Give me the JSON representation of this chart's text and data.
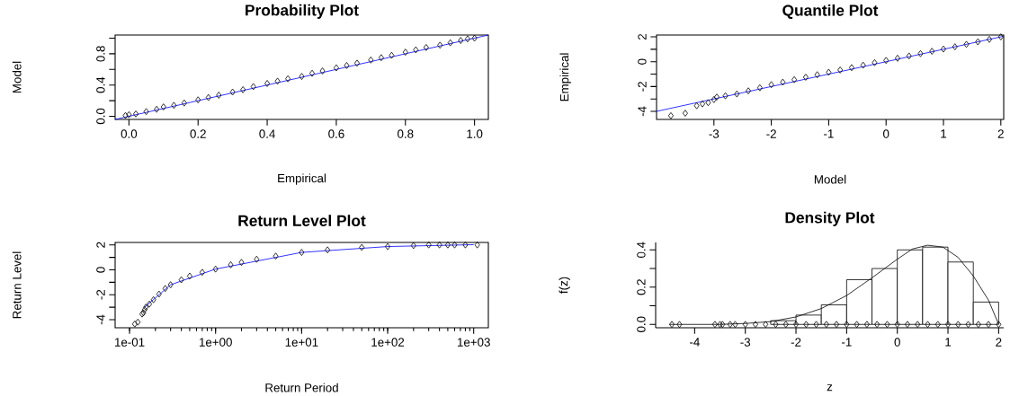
{
  "chart_data": [
    {
      "type": "scatter",
      "title": "Probability Plot",
      "xlabel": "Empirical",
      "ylabel": "Model",
      "xlim": [
        -0.04,
        1.04
      ],
      "ylim": [
        -0.04,
        1.04
      ],
      "xticks": [
        {
          "value": 0,
          "label": "0.0"
        },
        {
          "value": 0.2,
          "label": "0.2"
        },
        {
          "value": 0.4,
          "label": "0.4"
        },
        {
          "value": 0.6,
          "label": "0.6"
        },
        {
          "value": 0.8,
          "label": "0.8"
        },
        {
          "value": 1,
          "label": "1.0"
        }
      ],
      "yticks": [
        {
          "value": 0,
          "label": "0.0"
        },
        {
          "value": 0.2,
          "label": null
        },
        {
          "value": 0.4,
          "label": "0.4"
        },
        {
          "value": 0.6,
          "label": null
        },
        {
          "value": 0.8,
          "label": "0.8"
        },
        {
          "value": 1,
          "label": null
        }
      ],
      "series": [
        {
          "type": "scatter",
          "marker": "diamond",
          "color": "#000000",
          "x": [
            -0.01,
            0.0,
            0.02,
            0.05,
            0.08,
            0.1,
            0.13,
            0.16,
            0.2,
            0.23,
            0.26,
            0.3,
            0.33,
            0.36,
            0.4,
            0.43,
            0.46,
            0.5,
            0.53,
            0.56,
            0.6,
            0.63,
            0.66,
            0.7,
            0.73,
            0.76,
            0.8,
            0.83,
            0.86,
            0.9,
            0.93,
            0.96,
            0.98,
            1.0
          ],
          "values": [
            0.01,
            0.02,
            0.03,
            0.06,
            0.09,
            0.12,
            0.14,
            0.17,
            0.21,
            0.24,
            0.27,
            0.31,
            0.34,
            0.38,
            0.42,
            0.45,
            0.48,
            0.51,
            0.55,
            0.58,
            0.62,
            0.65,
            0.68,
            0.72,
            0.75,
            0.78,
            0.82,
            0.85,
            0.88,
            0.91,
            0.94,
            0.97,
            0.99,
            1.0
          ]
        },
        {
          "type": "line",
          "color": "#0000ff",
          "x": [
            -0.04,
            1.04
          ],
          "values": [
            -0.04,
            1.04
          ]
        }
      ]
    },
    {
      "type": "scatter",
      "title": "Quantile Plot",
      "xlabel": "Model",
      "ylabel": "Empirical",
      "xlim": [
        -4.0,
        2.05
      ],
      "ylim": [
        -4.65,
        2.15
      ],
      "xticks": [
        -3,
        -2,
        -1,
        0,
        1,
        2
      ],
      "yticks": [
        -4,
        {
          "value": -3,
          "label": null
        },
        -2,
        {
          "value": -1,
          "label": null
        },
        0,
        {
          "value": 1,
          "label": null
        },
        2
      ],
      "series": [
        {
          "type": "scatter",
          "marker": "diamond",
          "color": "#000000",
          "x": [
            -3.75,
            -3.5,
            -3.3,
            -3.2,
            -3.1,
            -3.0,
            -2.95,
            -2.8,
            -2.6,
            -2.4,
            -2.2,
            -2.0,
            -1.8,
            -1.6,
            -1.4,
            -1.2,
            -1.0,
            -0.8,
            -0.6,
            -0.4,
            -0.2,
            0,
            0.2,
            0.4,
            0.6,
            0.8,
            1.0,
            1.2,
            1.4,
            1.6,
            1.8,
            2.0
          ],
          "values": [
            -4.35,
            -4.15,
            -3.55,
            -3.4,
            -3.3,
            -3.05,
            -2.85,
            -2.75,
            -2.6,
            -2.35,
            -2.1,
            -1.85,
            -1.65,
            -1.45,
            -1.25,
            -1.05,
            -0.85,
            -0.67,
            -0.48,
            -0.28,
            -0.08,
            0.1,
            0.28,
            0.46,
            0.65,
            0.84,
            1.02,
            1.2,
            1.4,
            1.6,
            1.8,
            2.0
          ]
        },
        {
          "type": "line",
          "color": "#0000ff",
          "x": [
            -4.0,
            2.05
          ],
          "values": [
            -4.0,
            2.05
          ]
        }
      ]
    },
    {
      "type": "scatter",
      "title": "Return Level Plot",
      "xlabel": "Return Period",
      "ylabel": "Return Level",
      "log": "x",
      "xlim": [
        0.068,
        1480
      ],
      "ylim": [
        -4.65,
        2.2
      ],
      "xticks": [
        {
          "value": 0.1,
          "label": "1e-01"
        },
        {
          "value": 1,
          "label": "1e+00"
        },
        {
          "value": 10,
          "label": "1e+01"
        },
        {
          "value": 100,
          "label": "1e+02"
        },
        {
          "value": 1000,
          "label": "1e+03"
        }
      ],
      "yticks": [
        -4,
        {
          "value": -3,
          "label": null
        },
        -2,
        {
          "value": -1,
          "label": null
        },
        0,
        {
          "value": 1,
          "label": null
        },
        2
      ],
      "series": [
        {
          "type": "scatter",
          "marker": "diamond",
          "color": "#000000",
          "x": [
            0.115,
            0.125,
            0.14,
            0.145,
            0.15,
            0.155,
            0.17,
            0.19,
            0.22,
            0.26,
            0.3,
            0.4,
            0.5,
            0.7,
            1,
            1.5,
            2,
            3,
            5,
            10,
            20,
            50,
            100,
            200,
            300,
            400,
            500,
            600,
            800,
            1100
          ],
          "values": [
            -4.35,
            -4.2,
            -3.55,
            -3.45,
            -3.2,
            -3.0,
            -2.75,
            -2.4,
            -1.95,
            -1.5,
            -1.2,
            -0.8,
            -0.5,
            -0.2,
            0.06,
            0.4,
            0.6,
            0.85,
            1.1,
            1.4,
            1.6,
            1.8,
            1.87,
            1.95,
            2.0,
            2.0,
            2.0,
            2.0,
            2.0,
            2.0
          ]
        },
        {
          "type": "line",
          "color": "#0000ff",
          "x": [
            0.15,
            0.3,
            1,
            10,
            100,
            1000
          ],
          "values": [
            -3.0,
            -1.2,
            0.06,
            1.4,
            1.87,
            2.02
          ]
        }
      ]
    },
    {
      "type": "histogram",
      "title": "Density Plot",
      "xlabel": "z",
      "ylabel": "f(z)",
      "xlim": [
        -4.77,
        2.1
      ],
      "ylim": [
        -0.018,
        0.44
      ],
      "xticks": [
        -4,
        -3,
        -2,
        -1,
        0,
        1,
        2
      ],
      "yticks": [
        {
          "value": 0,
          "label": "0.0"
        },
        {
          "value": 0.1,
          "label": null
        },
        {
          "value": 0.2,
          "label": "0.2"
        },
        {
          "value": 0.3,
          "label": null
        },
        {
          "value": 0.4,
          "label": "0.4"
        }
      ],
      "bins": [
        -2.5,
        -2.0,
        -1.5,
        -1.0,
        -0.5,
        0.0,
        0.5,
        1.0,
        1.5,
        2.0
      ],
      "values": [
        0.02,
        0.05,
        0.105,
        0.24,
        0.3,
        0.4,
        0.415,
        0.335,
        0.12
      ],
      "series": [
        {
          "type": "line",
          "color": "#000000",
          "x": [
            -4.5,
            -3.5,
            -3.0,
            -2.5,
            -2.0,
            -1.5,
            -1.0,
            -0.5,
            0.0,
            0.3,
            0.6,
            0.9,
            1.2,
            1.5,
            1.8,
            2.0
          ],
          "values": [
            0,
            0,
            0.005,
            0.015,
            0.04,
            0.085,
            0.155,
            0.25,
            0.35,
            0.405,
            0.425,
            0.415,
            0.36,
            0.26,
            0.13,
            0.0
          ]
        },
        {
          "type": "scatter",
          "marker": "diamond",
          "color": "#000000",
          "x": [
            -4.45,
            -4.3,
            -3.6,
            -3.5,
            -3.45,
            -3.3,
            -3.2,
            -3.0,
            -2.8,
            -2.6,
            -2.4,
            -2.2,
            -2.0,
            -1.8,
            -1.6,
            -1.4,
            -1.2,
            -1.0,
            -0.8,
            -0.6,
            -0.4,
            -0.2,
            0.0,
            0.2,
            0.4,
            0.6,
            0.8,
            1.0,
            1.2,
            1.4,
            1.6,
            1.8,
            2.0
          ],
          "values": [
            0,
            0,
            0,
            0,
            0,
            0,
            0,
            0,
            0,
            0,
            0,
            0,
            0,
            0,
            0,
            0,
            0,
            0,
            0,
            0,
            0,
            0,
            0,
            0,
            0,
            0,
            0,
            0,
            0,
            0,
            0,
            0,
            0
          ]
        }
      ]
    }
  ]
}
